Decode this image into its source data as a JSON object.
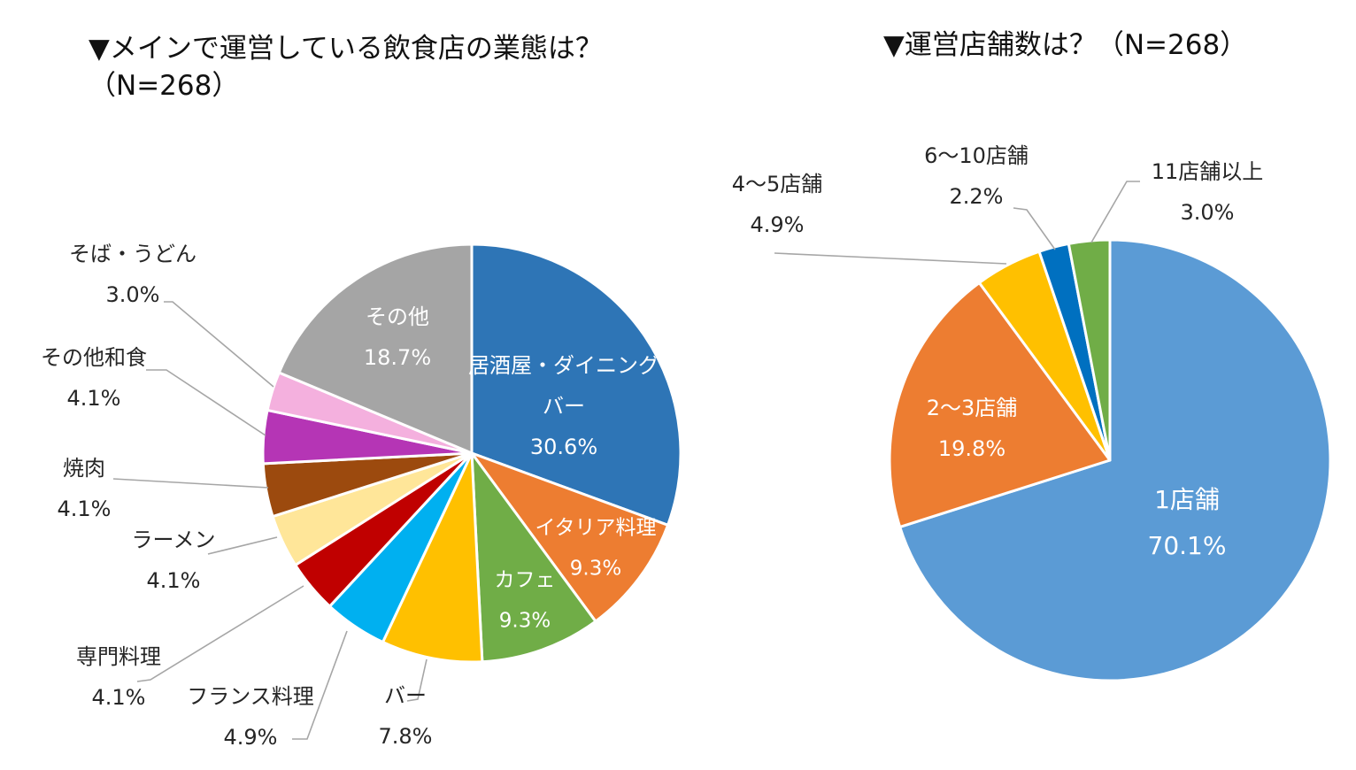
{
  "chart_data": [
    {
      "type": "pie",
      "title_line1": "▼メインで運営している飲食店の業態は？",
      "title_line2": "（N=268）",
      "slices": [
        {
          "label_lines": [
            "居酒屋・ダイニング",
            "バー"
          ],
          "value": 30.6,
          "value_label": "30.6%",
          "color": "#2E75B6"
        },
        {
          "label_lines": [
            "イタリア料理"
          ],
          "value": 9.3,
          "value_label": "9.3%",
          "color": "#ED7D31"
        },
        {
          "label_lines": [
            "カフェ"
          ],
          "value": 9.3,
          "value_label": "9.3%",
          "color": "#70AD47"
        },
        {
          "label_lines": [
            "バー"
          ],
          "value": 7.8,
          "value_label": "7.8%",
          "color": "#FFC000"
        },
        {
          "label_lines": [
            "フランス料理"
          ],
          "value": 4.9,
          "value_label": "4.9%",
          "color": "#00B0F0"
        },
        {
          "label_lines": [
            "専門料理"
          ],
          "value": 4.1,
          "value_label": "4.1%",
          "color": "#C00000"
        },
        {
          "label_lines": [
            "ラーメン"
          ],
          "value": 4.1,
          "value_label": "4.1%",
          "color": "#FFE699"
        },
        {
          "label_lines": [
            "焼肉"
          ],
          "value": 4.1,
          "value_label": "4.1%",
          "color": "#9C4A0E"
        },
        {
          "label_lines": [
            "その他和食"
          ],
          "value": 4.1,
          "value_label": "4.1%",
          "color": "#B535B5"
        },
        {
          "label_lines": [
            "そば・うどん"
          ],
          "value": 3.0,
          "value_label": "3.0%",
          "color": "#F4B0DE"
        },
        {
          "label_lines": [
            "その他"
          ],
          "value": 18.7,
          "value_label": "18.7%",
          "color": "#A5A5A5"
        }
      ]
    },
    {
      "type": "pie",
      "title": "▼運営店舗数は？（N=268）",
      "slices": [
        {
          "label_lines": [
            "1店舗"
          ],
          "value": 70.1,
          "value_label": "70.1%",
          "color": "#5B9BD5"
        },
        {
          "label_lines": [
            "2～3店舗"
          ],
          "value": 19.8,
          "value_label": "19.8%",
          "color": "#ED7D31"
        },
        {
          "label_lines": [
            "4～5店舗"
          ],
          "value": 4.9,
          "value_label": "4.9%",
          "color": "#FFC000"
        },
        {
          "label_lines": [
            "6～10店舗"
          ],
          "value": 2.2,
          "value_label": "2.2%",
          "color": "#0070C0"
        },
        {
          "label_lines": [
            "11店舗以上"
          ],
          "value": 3.0,
          "value_label": "3.0%",
          "color": "#70AD47"
        }
      ]
    }
  ]
}
